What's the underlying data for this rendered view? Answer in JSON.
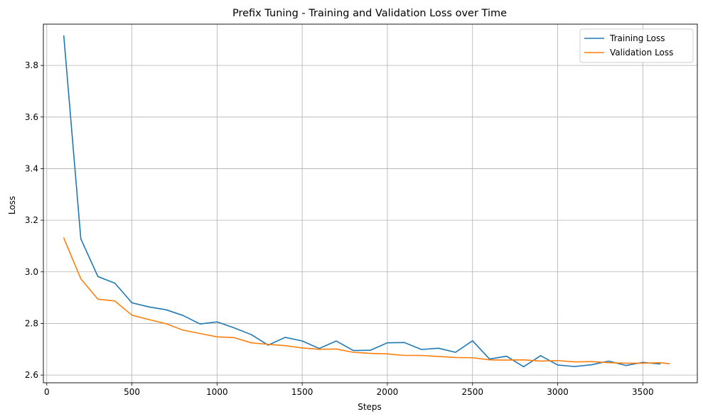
{
  "chart_data": {
    "type": "line",
    "title": "Prefix Tuning - Training and Validation Loss over Time",
    "xlabel": "Steps",
    "ylabel": "Loss",
    "xlim": [
      -20,
      3820
    ],
    "ylim": [
      2.57,
      3.96
    ],
    "xticks": [
      0,
      500,
      1000,
      1500,
      2000,
      2500,
      3000,
      3500
    ],
    "yticks": [
      2.6,
      2.8,
      3.0,
      3.2,
      3.4,
      3.6,
      3.8
    ],
    "xtick_labels": [
      "0",
      "500",
      "1000",
      "1500",
      "2000",
      "2500",
      "3000",
      "3500"
    ],
    "ytick_labels": [
      "2.6",
      "2.8",
      "3.0",
      "3.2",
      "3.4",
      "3.6",
      "3.8"
    ],
    "grid": true,
    "legend_position": "top-right",
    "series": [
      {
        "name": "Training Loss",
        "color": "#1f77b4",
        "x": [
          100,
          200,
          300,
          400,
          500,
          600,
          700,
          800,
          900,
          1000,
          1100,
          1200,
          1300,
          1400,
          1500,
          1600,
          1700,
          1800,
          1900,
          2000,
          2100,
          2200,
          2300,
          2400,
          2500,
          2600,
          2700,
          2800,
          2900,
          3000,
          3100,
          3200,
          3300,
          3400,
          3500,
          3600
        ],
        "y": [
          3.914,
          3.128,
          2.982,
          2.956,
          2.88,
          2.864,
          2.853,
          2.831,
          2.798,
          2.806,
          2.783,
          2.757,
          2.716,
          2.746,
          2.732,
          2.703,
          2.732,
          2.695,
          2.696,
          2.725,
          2.726,
          2.699,
          2.704,
          2.688,
          2.733,
          2.662,
          2.673,
          2.632,
          2.675,
          2.639,
          2.633,
          2.64,
          2.654,
          2.637,
          2.649,
          2.643
        ]
      },
      {
        "name": "Validation Loss",
        "color": "#ff7f0e",
        "x": [
          100,
          200,
          300,
          400,
          500,
          600,
          700,
          800,
          900,
          1000,
          1100,
          1200,
          1300,
          1400,
          1500,
          1600,
          1700,
          1800,
          1900,
          2000,
          2100,
          2200,
          2300,
          2400,
          2500,
          2600,
          2700,
          2800,
          2900,
          3000,
          3100,
          3200,
          3300,
          3400,
          3500,
          3600,
          3655
        ],
        "y": [
          3.131,
          2.973,
          2.894,
          2.887,
          2.832,
          2.815,
          2.799,
          2.774,
          2.761,
          2.748,
          2.745,
          2.725,
          2.719,
          2.714,
          2.705,
          2.7,
          2.701,
          2.688,
          2.684,
          2.682,
          2.676,
          2.676,
          2.672,
          2.668,
          2.667,
          2.659,
          2.658,
          2.659,
          2.654,
          2.656,
          2.651,
          2.652,
          2.648,
          2.646,
          2.646,
          2.648,
          2.644
        ]
      }
    ]
  }
}
